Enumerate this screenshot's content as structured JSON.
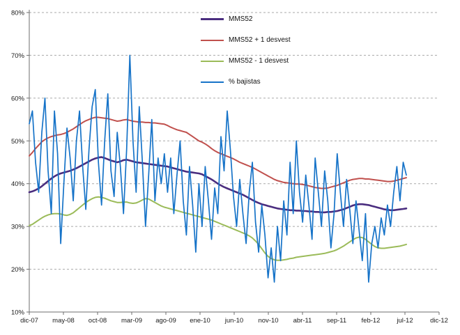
{
  "chart_data": {
    "type": "line",
    "title": "",
    "background_color": "#ffffff",
    "grid": "horizontal-dashed",
    "legend": {
      "position": "inside-top-center",
      "entries": [
        "MMS52",
        "MMS52 + 1 desvest",
        "MMS52 - 1 desvest",
        "% bajistas"
      ]
    },
    "x_axis": {
      "range_months": [
        0,
        60
      ],
      "tick_positions_months": [
        0,
        5,
        10,
        15,
        20,
        25,
        30,
        35,
        40,
        45,
        50,
        55,
        60
      ],
      "tick_labels": [
        "dic-07",
        "may-08",
        "oct-08",
        "mar-09",
        "ago-09",
        "ene-10",
        "jun-10",
        "nov-10",
        "abr-11",
        "sep-11",
        "feb-12",
        "jul-12",
        "dic-12"
      ]
    },
    "y_axis": {
      "ylim": [
        10,
        80
      ],
      "tick_values": [
        10,
        20,
        30,
        40,
        50,
        60,
        70,
        80
      ],
      "tick_labels": [
        "10%",
        "20%",
        "30%",
        "40%",
        "50%",
        "60%",
        "70%",
        "80%"
      ]
    },
    "x_step_months": 0.46,
    "sampling_note": "series sampled approximately biweekly from dic-07 to jul-12; values are percentages",
    "series": [
      {
        "name": "MMS52",
        "color": "#4a2d7f",
        "width": 2.6,
        "values": [
          38.0,
          38.2,
          38.5,
          38.9,
          39.4,
          40.0,
          40.6,
          41.2,
          41.7,
          42.1,
          42.4,
          42.6,
          42.8,
          43.0,
          43.3,
          43.6,
          44.0,
          44.4,
          44.8,
          45.2,
          45.6,
          45.9,
          46.1,
          46.2,
          46.0,
          45.7,
          45.4,
          45.2,
          45.0,
          45.2,
          45.5,
          45.6,
          45.4,
          45.2,
          45.0,
          44.9,
          44.8,
          44.7,
          44.6,
          44.5,
          44.4,
          44.3,
          44.2,
          44.1,
          44.0,
          43.8,
          43.6,
          43.4,
          43.2,
          43.0,
          42.8,
          42.7,
          42.6,
          42.5,
          42.4,
          42.2,
          41.8,
          41.4,
          41.0,
          40.5,
          40.0,
          39.6,
          39.2,
          38.9,
          38.6,
          38.3,
          38.0,
          37.7,
          37.4,
          37.0,
          36.6,
          36.2,
          35.8,
          35.5,
          35.2,
          35.0,
          34.8,
          34.6,
          34.4,
          34.2,
          34.1,
          34.0,
          33.9,
          33.8,
          33.8,
          33.7,
          33.7,
          33.6,
          33.6,
          33.5,
          33.5,
          33.4,
          33.4,
          33.3,
          33.3,
          33.4,
          33.4,
          33.5,
          33.6,
          33.8,
          34.0,
          34.3,
          34.6,
          34.9,
          35.1,
          35.2,
          35.2,
          35.1,
          35.0,
          34.8,
          34.6,
          34.4,
          34.2,
          34.0,
          33.9,
          33.8,
          33.8,
          33.9,
          34.0,
          34.1,
          34.2
        ]
      },
      {
        "name": "MMS52 + 1 desvest",
        "color": "#c0504d",
        "width": 2.0,
        "values": [
          46.5,
          47.3,
          48.2,
          49.0,
          49.8,
          50.3,
          50.7,
          51.0,
          51.2,
          51.4,
          51.5,
          51.7,
          52.0,
          52.4,
          52.8,
          53.3,
          53.8,
          54.3,
          54.7,
          55.0,
          55.3,
          55.5,
          55.5,
          55.4,
          55.3,
          55.2,
          55.0,
          54.8,
          54.6,
          54.7,
          54.9,
          55.0,
          54.8,
          54.6,
          54.5,
          54.4,
          54.4,
          54.3,
          54.3,
          54.2,
          54.2,
          54.1,
          54.0,
          53.9,
          53.6,
          53.2,
          52.9,
          52.6,
          52.4,
          52.2,
          52.0,
          51.5,
          51.0,
          50.5,
          50.0,
          49.7,
          49.3,
          48.8,
          48.2,
          47.7,
          47.3,
          47.0,
          46.7,
          46.4,
          46.1,
          45.8,
          45.4,
          45.0,
          44.7,
          44.4,
          44.1,
          43.8,
          43.4,
          43.0,
          42.6,
          42.2,
          41.8,
          41.4,
          41.0,
          40.7,
          40.5,
          40.3,
          40.2,
          40.1,
          40.0,
          39.9,
          39.9,
          39.8,
          39.7,
          39.5,
          39.3,
          39.1,
          39.0,
          38.9,
          38.9,
          39.0,
          39.2,
          39.4,
          39.6,
          39.9,
          40.2,
          40.5,
          40.8,
          41.0,
          41.1,
          41.2,
          41.2,
          41.1,
          41.1,
          41.0,
          40.9,
          40.8,
          40.7,
          40.6,
          40.5,
          40.5,
          40.6,
          40.8,
          41.0,
          41.2,
          41.4
        ]
      },
      {
        "name": "MMS52 - 1 desvest",
        "color": "#9bbb59",
        "width": 2.0,
        "values": [
          30.2,
          30.5,
          31.0,
          31.5,
          32.0,
          32.4,
          32.7,
          32.9,
          33.0,
          33.0,
          32.9,
          32.7,
          32.6,
          32.8,
          33.2,
          33.8,
          34.4,
          35.0,
          35.6,
          36.1,
          36.5,
          36.8,
          36.9,
          36.8,
          36.6,
          36.3,
          36.0,
          35.8,
          35.6,
          35.6,
          35.7,
          35.7,
          35.5,
          35.4,
          35.5,
          35.8,
          36.2,
          36.5,
          36.4,
          36.0,
          35.6,
          35.2,
          34.8,
          34.5,
          34.3,
          34.1,
          33.9,
          33.7,
          33.5,
          33.3,
          33.1,
          32.9,
          32.7,
          32.5,
          32.3,
          32.1,
          31.9,
          31.7,
          31.5,
          31.2,
          30.9,
          30.6,
          30.3,
          30.0,
          29.7,
          29.4,
          29.1,
          28.8,
          28.5,
          28.2,
          27.8,
          27.3,
          26.6,
          25.8,
          24.8,
          23.8,
          23.0,
          22.5,
          22.2,
          22.1,
          22.1,
          22.2,
          22.3,
          22.5,
          22.6,
          22.8,
          22.9,
          23.0,
          23.1,
          23.2,
          23.3,
          23.4,
          23.5,
          23.6,
          23.7,
          23.9,
          24.1,
          24.3,
          24.6,
          25.0,
          25.4,
          25.9,
          26.4,
          26.9,
          27.3,
          27.5,
          27.4,
          27.0,
          26.4,
          25.8,
          25.3,
          25.0,
          24.9,
          24.9,
          25.0,
          25.1,
          25.2,
          25.3,
          25.4,
          25.6,
          25.8
        ]
      },
      {
        "name": "% bajistas",
        "color": "#1673c8",
        "width": 1.7,
        "values": [
          54,
          57,
          45,
          38,
          52,
          60,
          43,
          33,
          57,
          47,
          26,
          40,
          53,
          46,
          36,
          50,
          57,
          44,
          34,
          48,
          58,
          62,
          45,
          35,
          50,
          61,
          43,
          37,
          52,
          44,
          33,
          48,
          70,
          50,
          38,
          58,
          45,
          30,
          42,
          55,
          36,
          46,
          40,
          47,
          38,
          46,
          33,
          42,
          50,
          36,
          28,
          44,
          35,
          24,
          40,
          30,
          44,
          36,
          27,
          39,
          33,
          51,
          43,
          57,
          48,
          37,
          30,
          41,
          33,
          26,
          38,
          45,
          31,
          24,
          35,
          28,
          18,
          25,
          17,
          30,
          22,
          36,
          28,
          45,
          33,
          50,
          38,
          31,
          42,
          35,
          27,
          46,
          38,
          30,
          43,
          36,
          25,
          33,
          47,
          38,
          30,
          41,
          34,
          26,
          36,
          29,
          22,
          33,
          17,
          26,
          30,
          25,
          32,
          28,
          35,
          30,
          38,
          44,
          36,
          45,
          42
        ]
      }
    ]
  }
}
